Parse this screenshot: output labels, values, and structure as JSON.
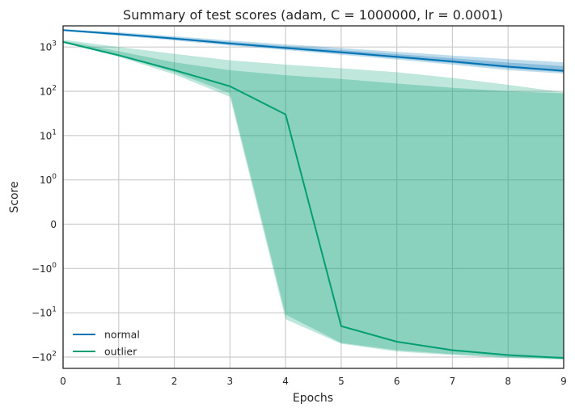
{
  "chart_data": {
    "type": "line",
    "title": "Summary of test scores (adam, C = 1000000, lr = 0.0001)",
    "xlabel": "Epochs",
    "ylabel": "Score",
    "x": [
      0,
      1,
      2,
      3,
      4,
      5,
      6,
      7,
      8,
      9
    ],
    "xlim": [
      0,
      9
    ],
    "yscale": "symlog",
    "ylim": [
      -180,
      3000
    ],
    "y_ticks": [
      {
        "value": 1000,
        "base": "10",
        "exp": "3"
      },
      {
        "value": 100,
        "base": "10",
        "exp": "2"
      },
      {
        "value": 10,
        "base": "10",
        "exp": "1"
      },
      {
        "value": 1,
        "base": "10",
        "exp": "0"
      },
      {
        "value": 0,
        "base": "0",
        "exp": ""
      },
      {
        "value": -1,
        "base": "−10",
        "exp": "0"
      },
      {
        "value": -10,
        "base": "−10",
        "exp": "1"
      },
      {
        "value": -100,
        "base": "−10",
        "exp": "2"
      }
    ],
    "grid": true,
    "legend_position": "bottom-left",
    "series": [
      {
        "name": "normal",
        "color": "#0173b2",
        "values": [
          2400,
          1950,
          1550,
          1200,
          950,
          760,
          600,
          470,
          360,
          290
        ],
        "band_outer": {
          "low": [
            2300,
            1800,
            1400,
            1080,
            850,
            670,
            520,
            400,
            300,
            250
          ],
          "high": [
            2550,
            2150,
            1750,
            1400,
            1150,
            950,
            780,
            640,
            530,
            450
          ]
        },
        "band_inner": {
          "low": [
            2350,
            1880,
            1480,
            1140,
            900,
            715,
            560,
            435,
            330,
            270
          ],
          "high": [
            2480,
            2050,
            1650,
            1300,
            1050,
            850,
            690,
            555,
            445,
            370
          ]
        }
      },
      {
        "name": "outlier",
        "color": "#029e73",
        "values": [
          1300,
          650,
          300,
          130,
          30,
          -20,
          -45,
          -70,
          -90,
          -105
        ],
        "band_outer": {
          "low": [
            1250,
            600,
            240,
            75,
            -14,
            -50,
            -75,
            -90,
            -105,
            -115
          ],
          "high": [
            1450,
            1000,
            700,
            500,
            400,
            330,
            270,
            200,
            140,
            95
          ]
        },
        "band_inner": {
          "low": [
            1280,
            630,
            270,
            90,
            -11,
            -48,
            -70,
            -86,
            -100,
            -110
          ],
          "high": [
            1380,
            800,
            450,
            300,
            230,
            190,
            150,
            120,
            100,
            90
          ]
        }
      }
    ]
  }
}
